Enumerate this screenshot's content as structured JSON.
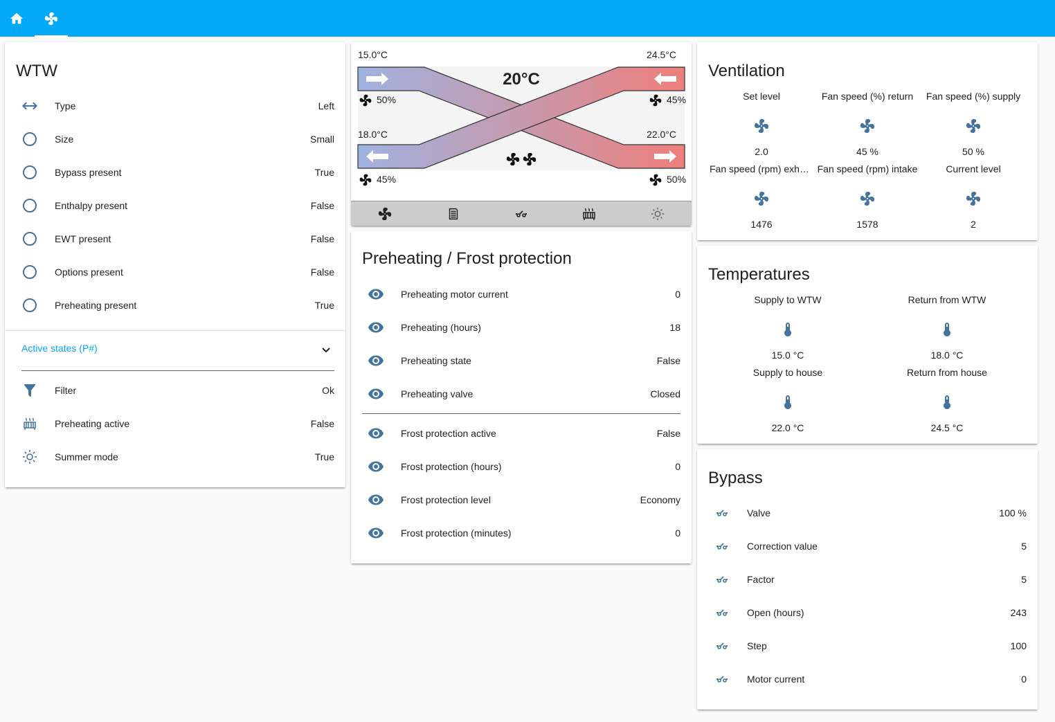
{
  "tabs": [
    {
      "name": "home-icon",
      "active": false
    },
    {
      "name": "fan-icon",
      "active": true
    }
  ],
  "wtw": {
    "title": "WTW",
    "rows": [
      {
        "label": "Type",
        "value": "Left",
        "icon": "arrow-left-right-icon"
      },
      {
        "label": "Size",
        "value": "Small",
        "icon": "circle-outline-icon"
      },
      {
        "label": "Bypass present",
        "value": "True",
        "icon": "circle-outline-icon"
      },
      {
        "label": "Enthalpy present",
        "value": "False",
        "icon": "circle-outline-icon"
      },
      {
        "label": "EWT present",
        "value": "False",
        "icon": "circle-outline-icon"
      },
      {
        "label": "Options present",
        "value": "False",
        "icon": "circle-outline-icon"
      },
      {
        "label": "Preheating present",
        "value": "True",
        "icon": "circle-outline-icon"
      }
    ],
    "expander_label": "Active states (P#)",
    "states": [
      {
        "label": "Filter",
        "value": "Ok",
        "icon": "filter-icon"
      },
      {
        "label": "Preheating active",
        "value": "False",
        "icon": "radiator-icon"
      },
      {
        "label": "Summer mode",
        "value": "True",
        "icon": "sun-icon"
      }
    ]
  },
  "diagram": {
    "outside_temp": "15.0°C",
    "exhaust_temp": "24.5°C",
    "supply_temp": "18.0°C",
    "extract_temp": "22.0°C",
    "center_temp": "20°C",
    "fan_top_left": "50%",
    "fan_top_right": "45%",
    "fan_bottom_left": "45%",
    "fan_bottom_right": "50%",
    "toolbar": [
      "fan-icon",
      "filter-icon",
      "valve-icon",
      "radiator-icon",
      "sun-icon"
    ],
    "colors": {
      "cold": "#9fb3e0",
      "warm": "#ee7f7a"
    }
  },
  "preheating": {
    "title": "Preheating / Frost protection",
    "rows": [
      {
        "label": "Preheating motor current",
        "value": "0"
      },
      {
        "label": "Preheating (hours)",
        "value": "18"
      },
      {
        "label": "Preheating state",
        "value": "False"
      },
      {
        "label": "Preheating valve",
        "value": "Closed"
      }
    ],
    "frost_rows": [
      {
        "label": "Frost protection active",
        "value": "False"
      },
      {
        "label": "Frost protection (hours)",
        "value": "0"
      },
      {
        "label": "Frost protection level",
        "value": "Economy"
      },
      {
        "label": "Frost protection (minutes)",
        "value": "0"
      }
    ]
  },
  "ventilation": {
    "title": "Ventilation",
    "items": [
      {
        "name": "Set level",
        "value": "2.0"
      },
      {
        "name": "Fan speed (%) return",
        "value": "45 %"
      },
      {
        "name": "Fan speed (%) supply",
        "value": "50 %"
      },
      {
        "name": "Fan speed (rpm) exha…",
        "value": "1476"
      },
      {
        "name": "Fan speed (rpm) intake",
        "value": "1578"
      },
      {
        "name": "Current level",
        "value": "2"
      }
    ]
  },
  "temperatures": {
    "title": "Temperatures",
    "items": [
      {
        "name": "Supply to WTW",
        "value": "15.0 °C"
      },
      {
        "name": "Return from WTW",
        "value": "18.0 °C"
      },
      {
        "name": "Supply to house",
        "value": "22.0 °C"
      },
      {
        "name": "Return from house",
        "value": "24.5 °C"
      }
    ]
  },
  "bypass": {
    "title": "Bypass",
    "rows": [
      {
        "label": "Valve",
        "value": "100 %"
      },
      {
        "label": "Correction value",
        "value": "5"
      },
      {
        "label": "Factor",
        "value": "5"
      },
      {
        "label": "Open (hours)",
        "value": "243"
      },
      {
        "label": "Step",
        "value": "100"
      },
      {
        "label": "Motor current",
        "value": "0"
      }
    ]
  },
  "theme": {
    "primary": "#03a9f4",
    "icon": "#44739e",
    "background": "#fafafa"
  }
}
